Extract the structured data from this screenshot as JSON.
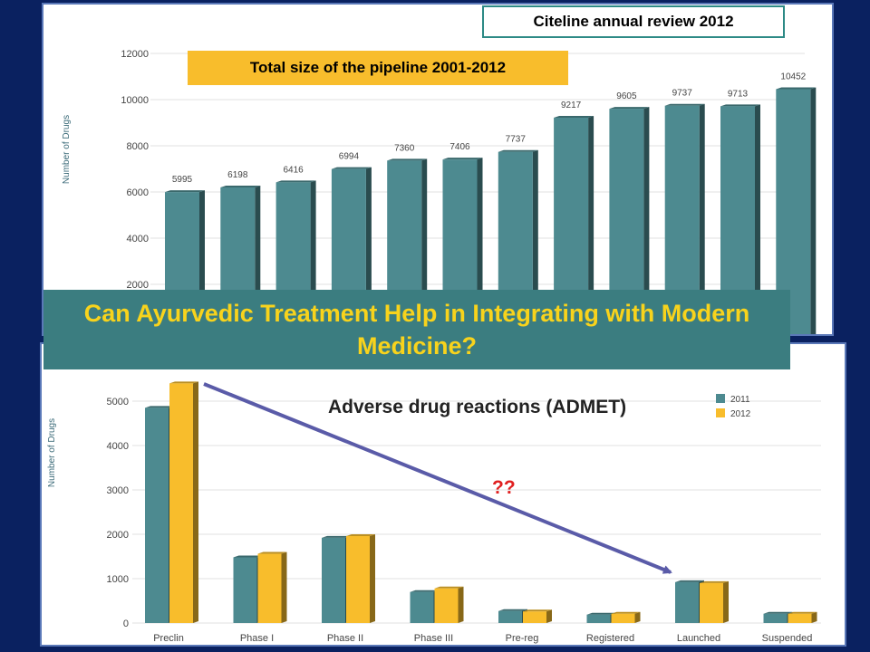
{
  "source_label": "Citeline annual review 2012",
  "question": "Can Ayurvedic Treatment Help in Integrating with Modern Medicine?",
  "adr_label": "Adverse drug reactions (ADMET)",
  "question_marks": "??",
  "colors": {
    "background": "#0a2160",
    "teal_bar": "#4d8a90",
    "yellow_bar": "#f8bd2c",
    "banner": "#3b7d80",
    "banner_text": "#f8d31c",
    "arrow": "#5a5ba8"
  },
  "chart_data": [
    {
      "type": "bar",
      "title": "Total size of the pipeline 2001-2012",
      "ylabel": "Number of Drugs",
      "ylim": [
        0,
        12000
      ],
      "yticks": [
        2000,
        4000,
        6000,
        8000,
        10000,
        12000
      ],
      "values": [
        5995,
        6198,
        6416,
        6994,
        7360,
        7406,
        7737,
        9217,
        9605,
        9737,
        9713,
        10452
      ]
    },
    {
      "type": "bar",
      "ylabel": "Number of Drugs",
      "ylim": [
        0,
        5500
      ],
      "yticks": [
        0,
        1000,
        2000,
        3000,
        4000,
        5000
      ],
      "categories": [
        "Preclin",
        "Phase I",
        "Phase II",
        "Phase III",
        "Pre-reg",
        "Registered",
        "Launched",
        "Suspended"
      ],
      "series": [
        {
          "name": "2011",
          "values": [
            4850,
            1480,
            1920,
            700,
            270,
            190,
            920,
            210
          ]
        },
        {
          "name": "2012",
          "values": [
            5400,
            1560,
            1960,
            780,
            260,
            210,
            900,
            210
          ]
        }
      ]
    }
  ]
}
